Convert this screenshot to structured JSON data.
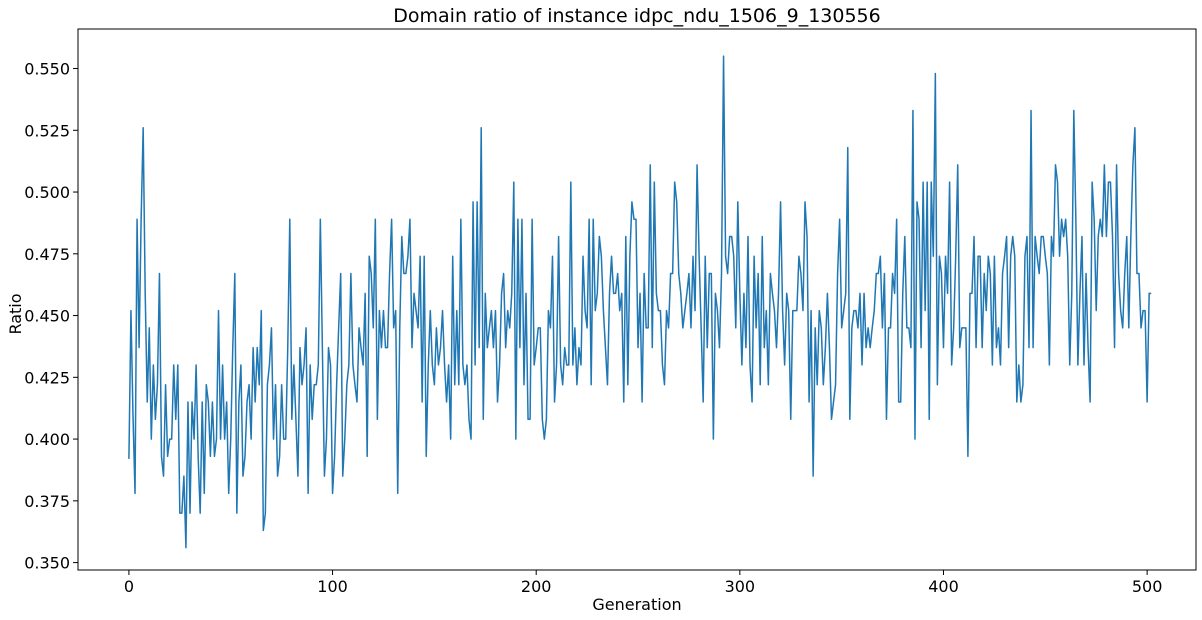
{
  "chart_data": {
    "type": "line",
    "title": "Domain ratio of instance idpc_ndu_1506_9_130556",
    "xlabel": "Generation",
    "ylabel": "Ratio",
    "xlim": [
      -25,
      524
    ],
    "ylim": [
      0.347,
      0.566
    ],
    "xticks": [
      0,
      100,
      200,
      300,
      400,
      500
    ],
    "xtick_labels": [
      "0",
      "100",
      "200",
      "300",
      "400",
      "500"
    ],
    "yticks": [
      0.35,
      0.375,
      0.4,
      0.425,
      0.45,
      0.475,
      0.5,
      0.525,
      0.55
    ],
    "ytick_labels": [
      "0.350",
      "0.375",
      "0.400",
      "0.425",
      "0.450",
      "0.475",
      "0.500",
      "0.525",
      "0.550"
    ],
    "grid": false,
    "line_color": "#1f77b4",
    "series": [
      {
        "x_start": 0,
        "x_step": 1,
        "values": [
          0.392,
          0.452,
          0.41,
          0.378,
          0.489,
          0.437,
          0.489,
          0.526,
          0.459,
          0.415,
          0.445,
          0.4,
          0.43,
          0.408,
          0.422,
          0.467,
          0.393,
          0.385,
          0.422,
          0.393,
          0.4,
          0.4,
          0.43,
          0.408,
          0.43,
          0.37,
          0.37,
          0.385,
          0.356,
          0.415,
          0.37,
          0.415,
          0.4,
          0.43,
          0.393,
          0.37,
          0.415,
          0.378,
          0.422,
          0.415,
          0.393,
          0.415,
          0.393,
          0.4,
          0.452,
          0.4,
          0.43,
          0.4,
          0.415,
          0.378,
          0.4,
          0.437,
          0.467,
          0.37,
          0.415,
          0.43,
          0.385,
          0.393,
          0.415,
          0.422,
          0.4,
          0.437,
          0.415,
          0.437,
          0.422,
          0.452,
          0.363,
          0.37,
          0.422,
          0.43,
          0.445,
          0.4,
          0.422,
          0.385,
          0.393,
          0.422,
          0.4,
          0.4,
          0.437,
          0.489,
          0.408,
          0.43,
          0.408,
          0.385,
          0.437,
          0.422,
          0.43,
          0.445,
          0.378,
          0.43,
          0.408,
          0.422,
          0.422,
          0.43,
          0.489,
          0.437,
          0.385,
          0.4,
          0.437,
          0.43,
          0.378,
          0.393,
          0.422,
          0.445,
          0.467,
          0.385,
          0.4,
          0.422,
          0.43,
          0.467,
          0.43,
          0.422,
          0.415,
          0.445,
          0.437,
          0.43,
          0.459,
          0.393,
          0.474,
          0.467,
          0.445,
          0.489,
          0.408,
          0.452,
          0.437,
          0.452,
          0.437,
          0.437,
          0.467,
          0.489,
          0.445,
          0.452,
          0.378,
          0.445,
          0.482,
          0.467,
          0.467,
          0.474,
          0.489,
          0.437,
          0.459,
          0.452,
          0.445,
          0.474,
          0.415,
          0.474,
          0.393,
          0.43,
          0.452,
          0.43,
          0.422,
          0.445,
          0.43,
          0.437,
          0.452,
          0.43,
          0.415,
          0.43,
          0.4,
          0.474,
          0.422,
          0.452,
          0.422,
          0.489,
          0.43,
          0.422,
          0.43,
          0.408,
          0.4,
          0.496,
          0.43,
          0.496,
          0.437,
          0.526,
          0.408,
          0.459,
          0.437,
          0.445,
          0.452,
          0.437,
          0.452,
          0.415,
          0.43,
          0.459,
          0.467,
          0.437,
          0.452,
          0.445,
          0.459,
          0.504,
          0.4,
          0.489,
          0.437,
          0.489,
          0.422,
          0.459,
          0.408,
          0.408,
          0.489,
          0.43,
          0.437,
          0.445,
          0.445,
          0.408,
          0.4,
          0.408,
          0.452,
          0.445,
          0.474,
          0.415,
          0.43,
          0.482,
          0.43,
          0.422,
          0.437,
          0.43,
          0.43,
          0.504,
          0.43,
          0.445,
          0.422,
          0.437,
          0.43,
          0.474,
          0.452,
          0.445,
          0.489,
          0.422,
          0.489,
          0.452,
          0.459,
          0.482,
          0.474,
          0.452,
          0.437,
          0.422,
          0.459,
          0.474,
          0.459,
          0.459,
          0.467,
          0.452,
          0.459,
          0.415,
          0.482,
          0.422,
          0.474,
          0.496,
          0.489,
          0.489,
          0.437,
          0.459,
          0.415,
          0.467,
          0.445,
          0.445,
          0.511,
          0.437,
          0.504,
          0.459,
          0.452,
          0.452,
          0.43,
          0.422,
          0.452,
          0.445,
          0.467,
          0.467,
          0.504,
          0.496,
          0.467,
          0.459,
          0.445,
          0.452,
          0.459,
          0.467,
          0.445,
          0.474,
          0.452,
          0.511,
          0.474,
          0.445,
          0.415,
          0.474,
          0.437,
          0.467,
          0.467,
          0.4,
          0.459,
          0.452,
          0.437,
          0.467,
          0.555,
          0.474,
          0.467,
          0.482,
          0.482,
          0.474,
          0.445,
          0.496,
          0.459,
          0.43,
          0.459,
          0.437,
          0.482,
          0.43,
          0.415,
          0.474,
          0.445,
          0.467,
          0.422,
          0.482,
          0.437,
          0.452,
          0.422,
          0.467,
          0.459,
          0.452,
          0.437,
          0.459,
          0.496,
          0.452,
          0.43,
          0.459,
          0.452,
          0.408,
          0.452,
          0.452,
          0.452,
          0.474,
          0.467,
          0.452,
          0.496,
          0.482,
          0.415,
          0.452,
          0.385,
          0.445,
          0.422,
          0.452,
          0.445,
          0.422,
          0.437,
          0.459,
          0.437,
          0.408,
          0.415,
          0.422,
          0.467,
          0.489,
          0.445,
          0.452,
          0.459,
          0.518,
          0.408,
          0.445,
          0.452,
          0.452,
          0.445,
          0.459,
          0.43,
          0.459,
          0.437,
          0.445,
          0.437,
          0.445,
          0.452,
          0.467,
          0.467,
          0.474,
          0.445,
          0.467,
          0.408,
          0.445,
          0.445,
          0.467,
          0.459,
          0.489,
          0.415,
          0.415,
          0.459,
          0.482,
          0.445,
          0.445,
          0.437,
          0.533,
          0.4,
          0.496,
          0.489,
          0.437,
          0.504,
          0.452,
          0.504,
          0.408,
          0.504,
          0.474,
          0.548,
          0.422,
          0.474,
          0.467,
          0.437,
          0.474,
          0.459,
          0.504,
          0.43,
          0.445,
          0.474,
          0.511,
          0.437,
          0.445,
          0.445,
          0.445,
          0.393,
          0.459,
          0.459,
          0.482,
          0.437,
          0.474,
          0.474,
          0.437,
          0.467,
          0.452,
          0.474,
          0.467,
          0.43,
          0.474,
          0.437,
          0.445,
          0.43,
          0.467,
          0.474,
          0.482,
          0.437,
          0.474,
          0.482,
          0.474,
          0.415,
          0.43,
          0.415,
          0.422,
          0.474,
          0.482,
          0.437,
          0.533,
          0.437,
          0.482,
          0.474,
          0.467,
          0.482,
          0.482,
          0.474,
          0.467,
          0.43,
          0.482,
          0.474,
          0.511,
          0.504,
          0.474,
          0.489,
          0.482,
          0.489,
          0.474,
          0.43,
          0.459,
          0.533,
          0.489,
          0.43,
          0.459,
          0.482,
          0.43,
          0.467,
          0.437,
          0.415,
          0.504,
          0.489,
          0.452,
          0.482,
          0.489,
          0.482,
          0.511,
          0.482,
          0.504,
          0.504,
          0.482,
          0.437,
          0.511,
          0.467,
          0.452,
          0.445,
          0.467,
          0.482,
          0.445,
          0.482,
          0.511,
          0.526,
          0.467,
          0.467,
          0.445,
          0.452,
          0.452,
          0.415,
          0.459,
          0.459
        ]
      }
    ]
  }
}
